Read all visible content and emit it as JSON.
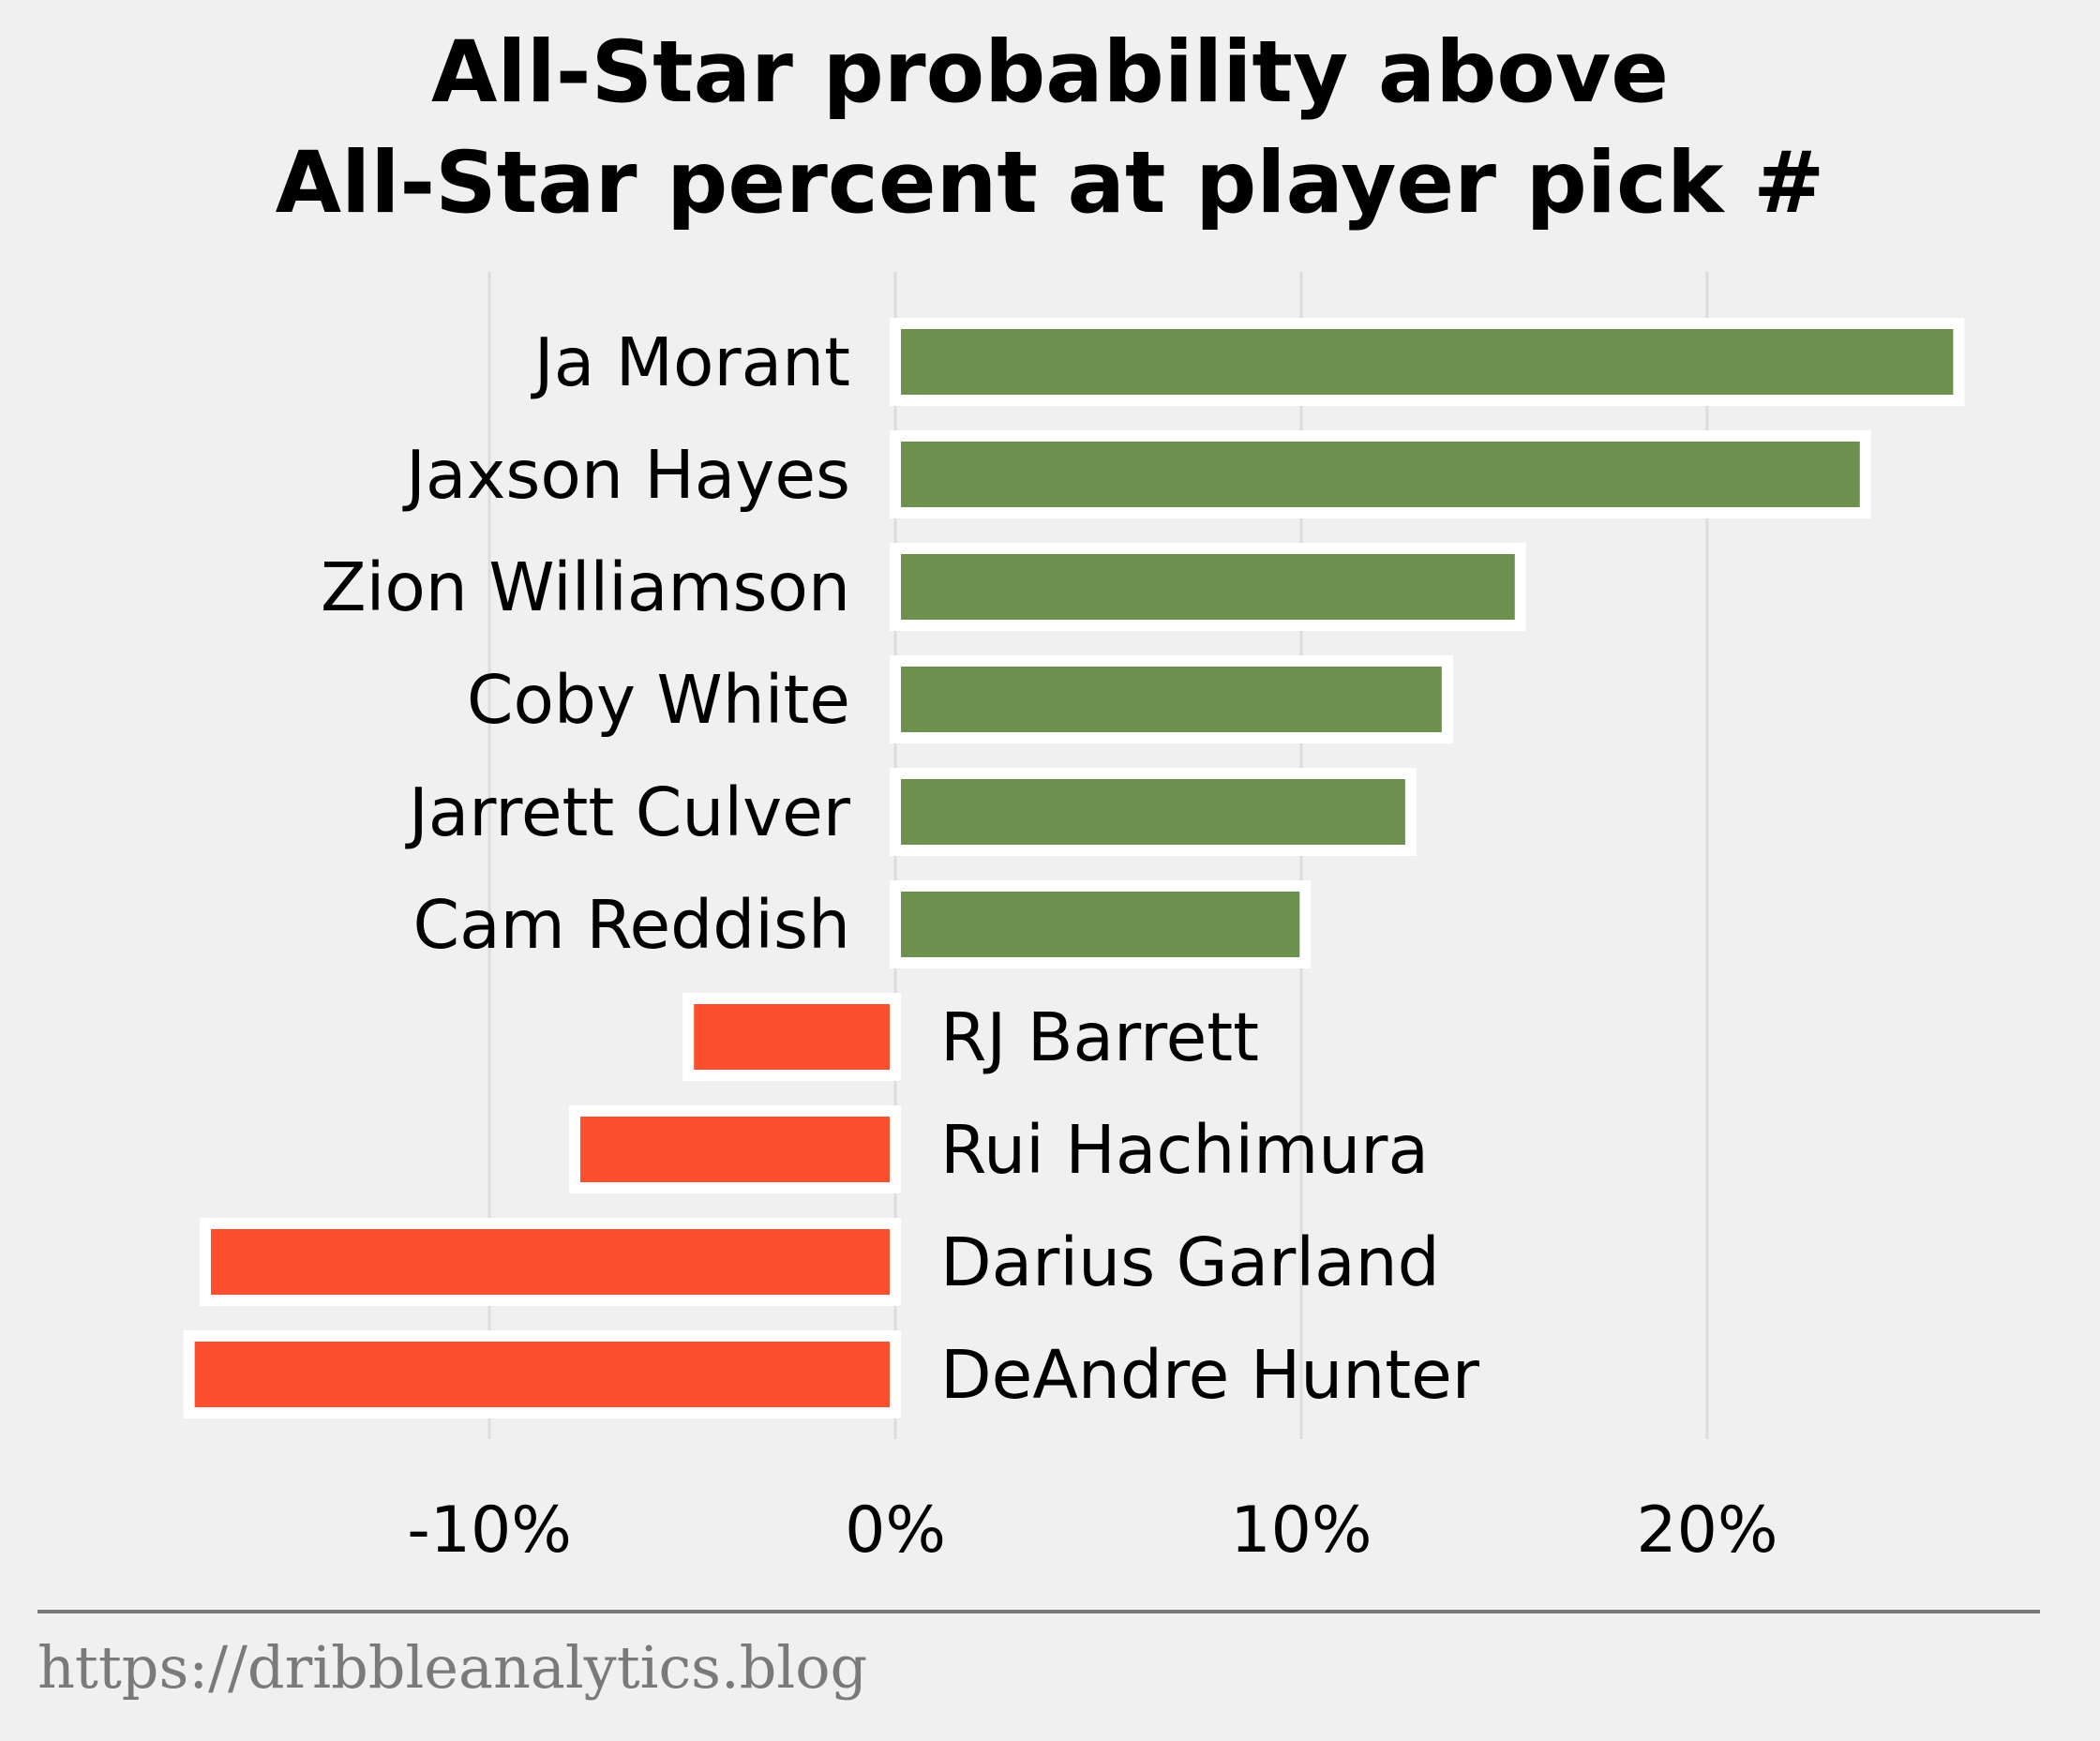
{
  "colors": {
    "positive": "#6d904f",
    "negative": "#fc4f30",
    "background": "#f0f0f0",
    "grid": "#dcdcdc",
    "footer": "#7a7a7a"
  },
  "chart_data": {
    "type": "bar",
    "orientation": "horizontal",
    "title": [
      "All-Star probability above",
      "All-Star percent at player pick #"
    ],
    "categories": [
      "Ja Morant",
      "Jaxson Hayes",
      "Zion Williamson",
      "Coby White",
      "Jarrett Culver",
      "Cam Reddish",
      "RJ Barrett",
      "Rui Hachimura",
      "Darius Garland",
      "DeAndre Hunter"
    ],
    "values": [
      26.2,
      23.9,
      15.4,
      13.6,
      12.7,
      10.1,
      -5.1,
      -7.9,
      -17.0,
      -17.4
    ],
    "xlim": [
      -17.9,
      27.6
    ],
    "xticks": [
      -10,
      0,
      10,
      20
    ],
    "xtick_labels": [
      "-10%",
      "0%",
      "10%",
      "20%"
    ],
    "grid": "vertical",
    "legend": "none"
  },
  "footer": {
    "source": "https://dribbleanalytics.blog"
  }
}
